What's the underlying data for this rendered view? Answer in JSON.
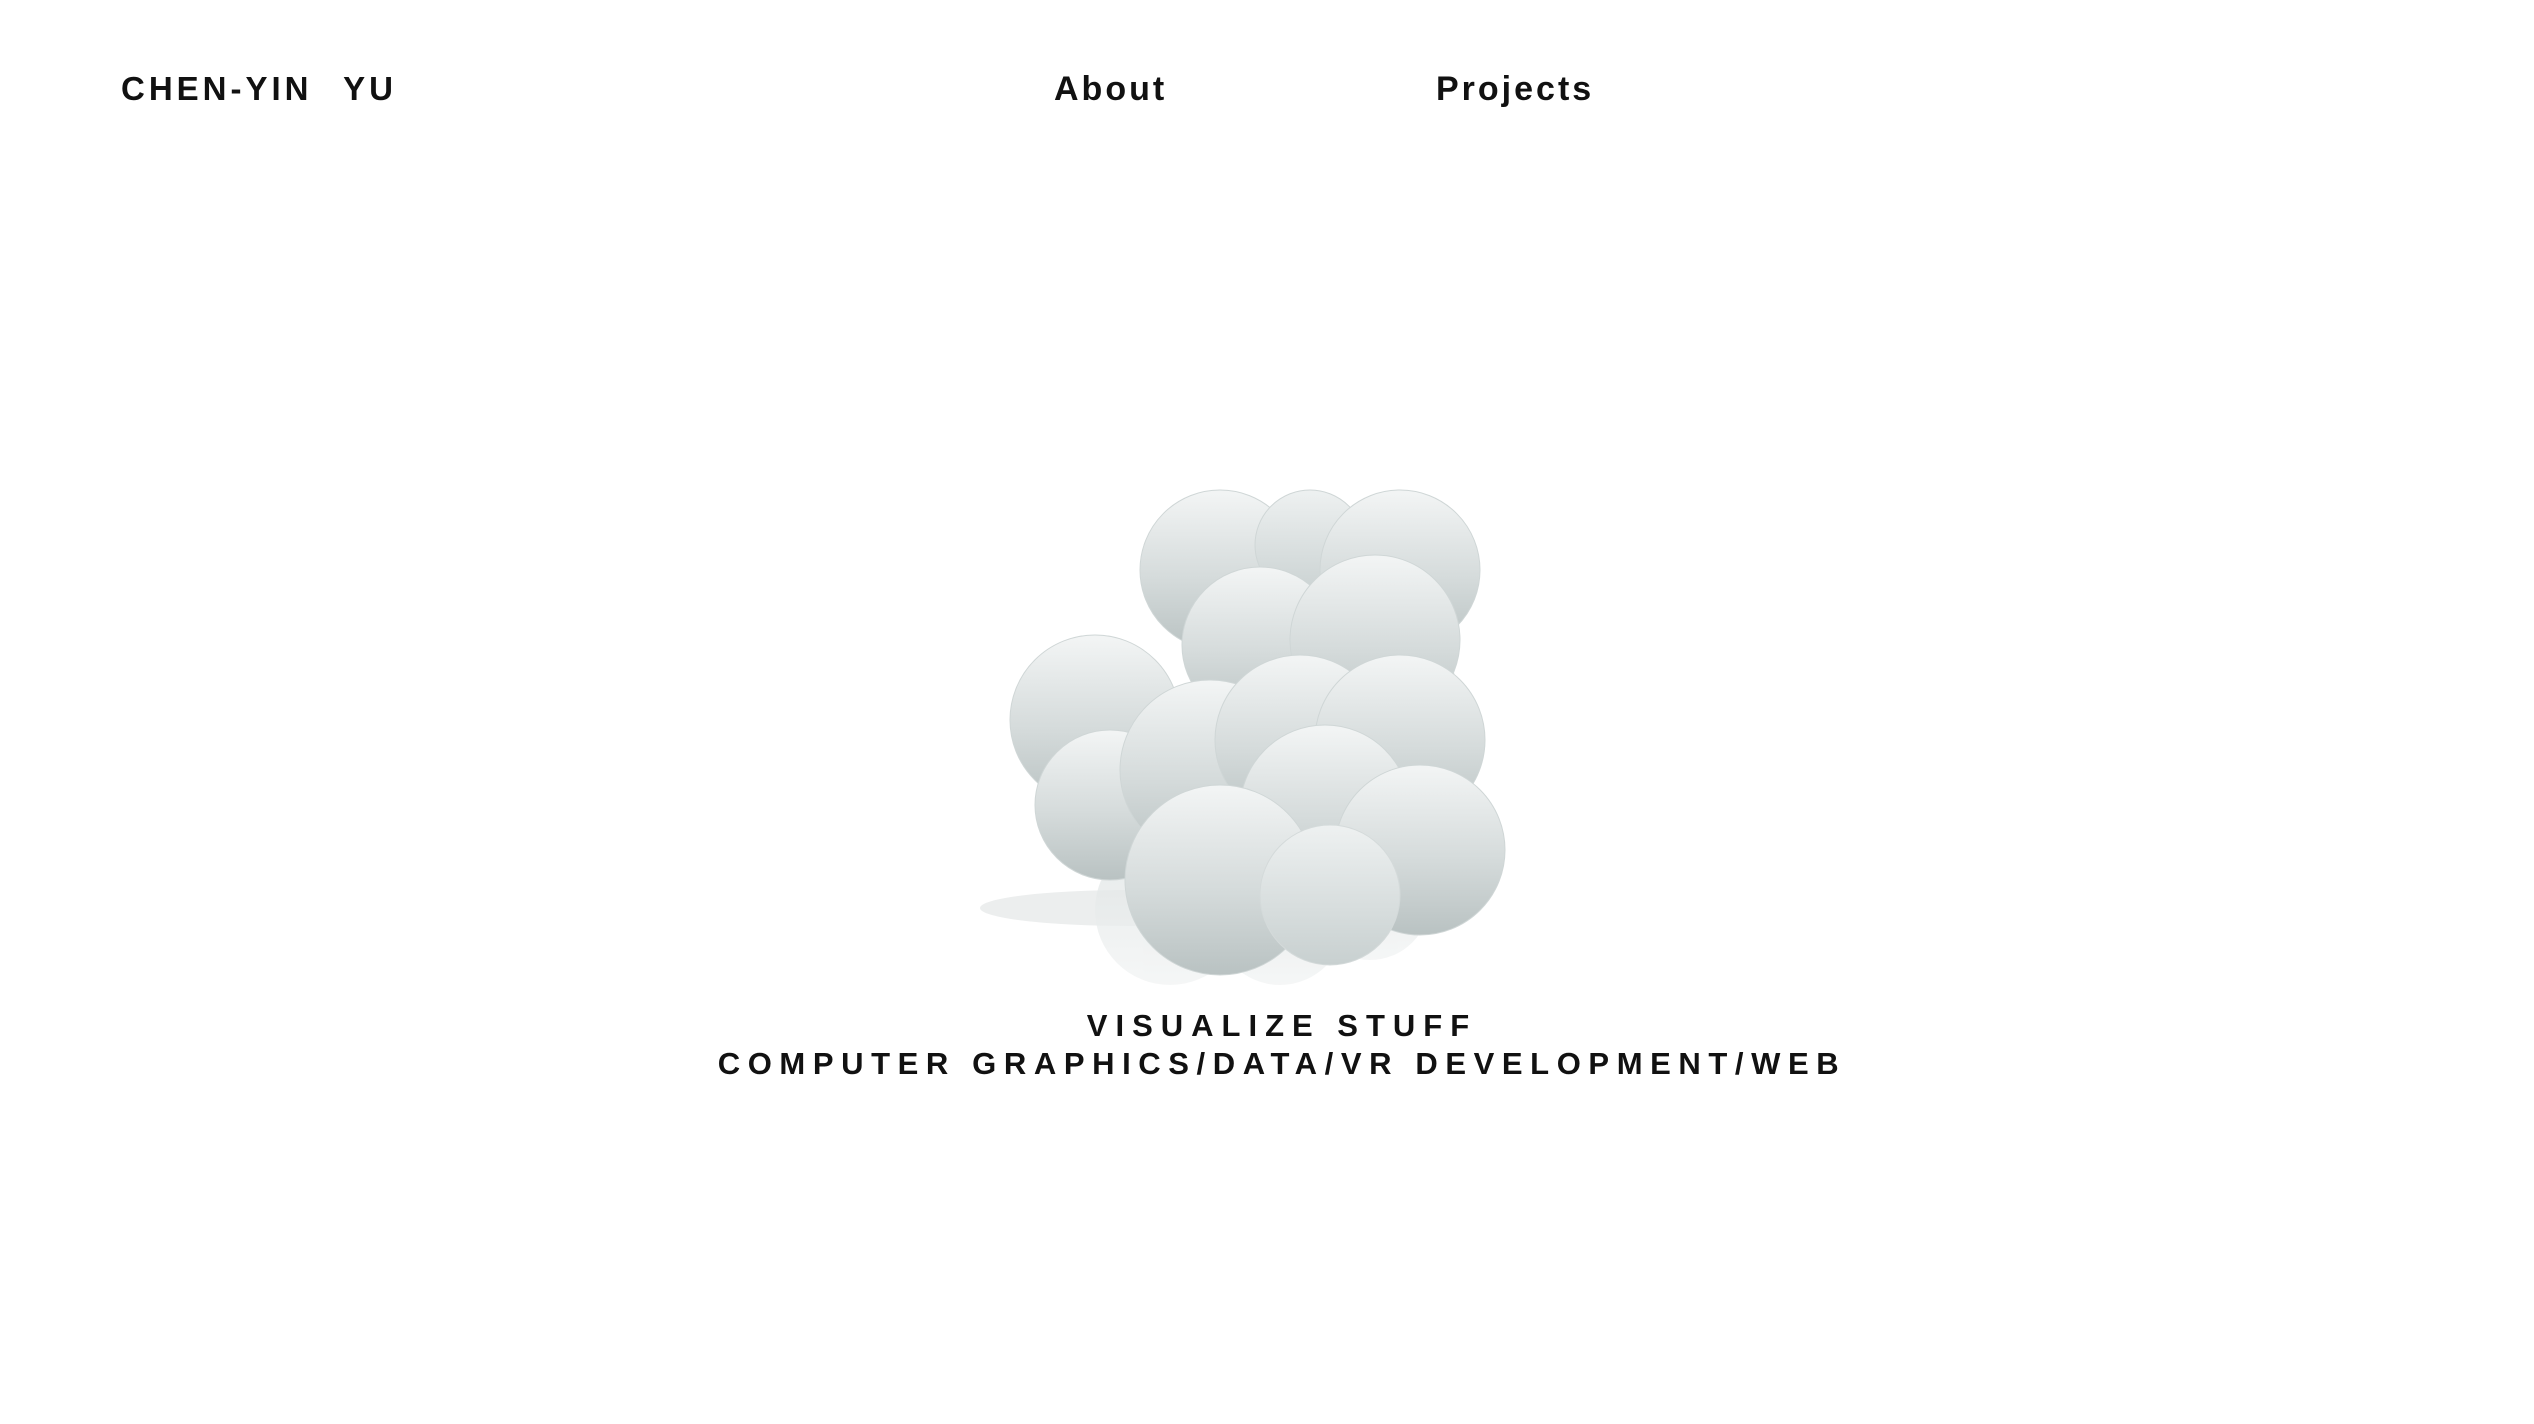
{
  "header": {
    "brand": "CHEN-YIN YU",
    "nav": [
      {
        "label": "About"
      },
      {
        "label": "Projects"
      }
    ]
  },
  "hero": {
    "art_icon": "bubble-cluster-icon",
    "art_color": "#c9d0d0",
    "title": "VISUALIZE STUFF",
    "subtitle": "COMPUTER GRAPHICS/DATA/VR DEVELOPMENT/WEB"
  }
}
